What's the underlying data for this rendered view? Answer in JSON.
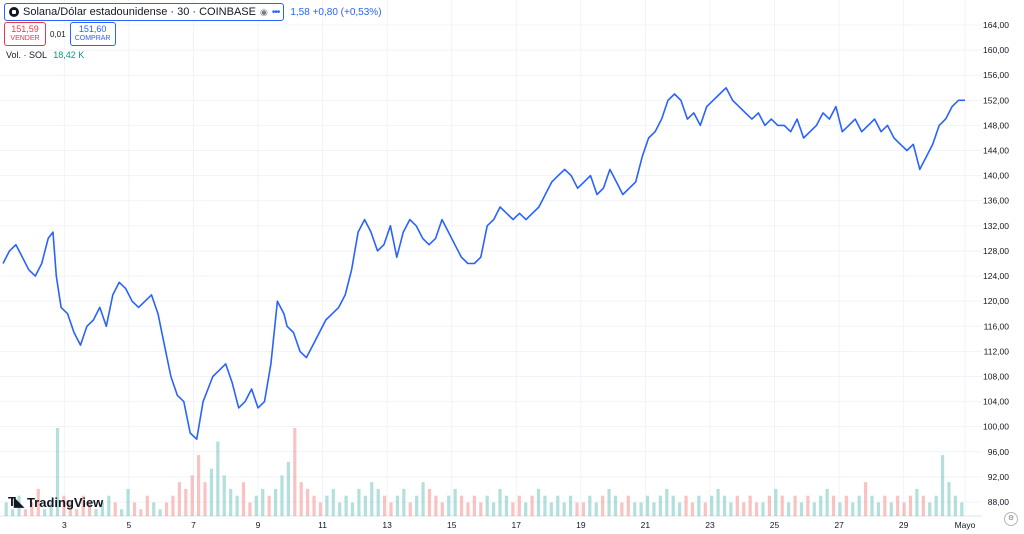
{
  "header": {
    "symbol": "Solana/Dólar estadounidense · 30 · COINBASE",
    "change_text": "1,58 +0,80 (+0,53%)",
    "icons": [
      "symbol-logo-icon",
      "eye-icon",
      "more-icon"
    ]
  },
  "trade": {
    "sell_price": "151,59",
    "sell_label": "VENDER",
    "spread": "0,01",
    "buy_price": "151,60",
    "buy_label": "COMPRAR"
  },
  "volume": {
    "label": "Vol. · SOL",
    "value": "18,42 K"
  },
  "brand": {
    "icon": "tradingview-logo-icon",
    "name": "TradingView"
  },
  "colors": {
    "line": "#2962ff",
    "up": "#26a69a",
    "down": "#ef5350",
    "grid": "#f0f3fa",
    "axis_text": "#131722"
  },
  "chart_data": {
    "type": "line",
    "title": "Solana/Dólar estadounidense · 30 · COINBASE",
    "x_range_days": [
      1.1,
      30.9
    ],
    "ylim": [
      86,
      166
    ],
    "y_ticks": [
      88,
      92,
      96,
      100,
      104,
      108,
      112,
      116,
      120,
      124,
      128,
      132,
      136,
      140,
      144,
      148,
      152,
      156,
      160,
      164
    ],
    "y_tick_labels": [
      "88,00",
      "92,00",
      "96,00",
      "100,00",
      "104,00",
      "108,00",
      "112,00",
      "116,00",
      "120,00",
      "124,00",
      "128,00",
      "132,00",
      "136,00",
      "140,00",
      "144,00",
      "148,00",
      "152,00",
      "156,00",
      "160,00",
      "164,00"
    ],
    "x_ticks": [
      3,
      5,
      7,
      9,
      11,
      13,
      15,
      17,
      19,
      21,
      23,
      25,
      27,
      29,
      30.9
    ],
    "x_tick_labels": [
      "3",
      "5",
      "7",
      "9",
      "11",
      "13",
      "15",
      "17",
      "19",
      "21",
      "23",
      "25",
      "27",
      "29",
      "Mayo"
    ],
    "series": [
      {
        "x": [
          1.1,
          1.3,
          1.5,
          1.7,
          1.9,
          2.1,
          2.3,
          2.5,
          2.65,
          2.75,
          2.9,
          3.1,
          3.3,
          3.5,
          3.7,
          3.9,
          4.1,
          4.3,
          4.5,
          4.7,
          4.9,
          5.1,
          5.3,
          5.5,
          5.7,
          5.9,
          6.1,
          6.3,
          6.5,
          6.7,
          6.9,
          7.1,
          7.3,
          7.45,
          7.6,
          7.8,
          8.0,
          8.2,
          8.4,
          8.6,
          8.8,
          9.0,
          9.2,
          9.4,
          9.6,
          9.8,
          9.9,
          10.1,
          10.3,
          10.5,
          10.7,
          10.9,
          11.1,
          11.3,
          11.5,
          11.7,
          11.9,
          12.1,
          12.3,
          12.5,
          12.7,
          12.9,
          13.1,
          13.3,
          13.5,
          13.7,
          13.9,
          14.1,
          14.3,
          14.5,
          14.7,
          14.9,
          15.1,
          15.3,
          15.5,
          15.7,
          15.9,
          16.1,
          16.3,
          16.5,
          16.7,
          16.9,
          17.1,
          17.3,
          17.5,
          17.7,
          17.9,
          18.1,
          18.3,
          18.5,
          18.7,
          18.9,
          19.1,
          19.3,
          19.5,
          19.7,
          19.9,
          20.1,
          20.3,
          20.5,
          20.7,
          20.9,
          21.1,
          21.3,
          21.5,
          21.7,
          21.9,
          22.1,
          22.3,
          22.5,
          22.7,
          22.9,
          23.1,
          23.3,
          23.5,
          23.7,
          23.9,
          24.1,
          24.3,
          24.5,
          24.7,
          24.9,
          25.1,
          25.3,
          25.5,
          25.7,
          25.9,
          26.1,
          26.3,
          26.5,
          26.7,
          26.9,
          27.1,
          27.3,
          27.5,
          27.7,
          27.9,
          28.1,
          28.3,
          28.5,
          28.7,
          28.9,
          29.1,
          29.3,
          29.5,
          29.7,
          29.9,
          30.1,
          30.3,
          30.5,
          30.7,
          30.9
        ],
        "y": [
          126,
          128,
          129,
          127,
          125,
          124,
          126,
          130,
          131,
          124,
          119,
          118,
          115,
          113,
          116,
          117,
          119,
          116,
          121,
          123,
          122,
          120,
          119,
          120,
          121,
          118,
          113,
          108,
          105,
          104,
          99,
          98,
          104,
          106,
          108,
          109,
          110,
          107,
          103,
          104,
          106,
          103,
          104,
          110,
          120,
          118,
          116,
          115,
          112,
          111,
          113,
          115,
          117,
          118,
          119,
          121,
          125,
          131,
          133,
          131,
          128,
          129,
          132,
          127,
          131,
          133,
          132,
          130,
          129,
          130,
          133,
          131,
          129,
          127,
          126,
          126,
          127,
          132,
          133,
          135,
          134,
          133,
          134,
          133,
          134,
          135,
          137,
          139,
          140,
          141,
          140,
          138,
          139,
          140,
          137,
          138,
          141,
          139,
          137,
          138,
          139,
          143,
          146,
          147,
          149,
          152,
          153,
          152,
          149,
          150,
          148,
          151,
          152,
          153,
          154,
          152,
          151,
          150,
          149,
          150,
          148,
          149,
          148,
          148,
          147,
          149,
          146,
          147,
          148,
          150,
          149,
          151,
          147,
          148,
          149,
          147,
          148,
          149,
          147,
          148,
          146,
          145,
          144,
          145,
          141,
          143,
          145,
          148,
          149,
          151,
          152,
          152
        ]
      }
    ],
    "volume": [
      2,
      1,
      3,
      1,
      2,
      4,
      1,
      2,
      13,
      3,
      2,
      1,
      3,
      2,
      1,
      2,
      3,
      2,
      1,
      4,
      2,
      1,
      3,
      2,
      1,
      2,
      3,
      5,
      4,
      6,
      9,
      5,
      7,
      11,
      6,
      4,
      3,
      5,
      2,
      3,
      4,
      3,
      4,
      6,
      8,
      13,
      5,
      4,
      3,
      2,
      3,
      4,
      2,
      3,
      2,
      4,
      3,
      5,
      4,
      3,
      2,
      3,
      4,
      2,
      3,
      5,
      4,
      3,
      2,
      3,
      4,
      3,
      2,
      3,
      2,
      3,
      2,
      4,
      3,
      2,
      3,
      2,
      3,
      4,
      3,
      2,
      3,
      2,
      3,
      2,
      2,
      3,
      2,
      3,
      4,
      3,
      2,
      3,
      2,
      2,
      3,
      2,
      3,
      4,
      3,
      2,
      3,
      2,
      3,
      2,
      3,
      4,
      3,
      2,
      3,
      2,
      3,
      2,
      2,
      3,
      4,
      3,
      2,
      3,
      2,
      3,
      2,
      3,
      4,
      3,
      2,
      3,
      2,
      3,
      5,
      3,
      2,
      3,
      2,
      3,
      2,
      3,
      4,
      3,
      2,
      3,
      9,
      5,
      3,
      2
    ]
  }
}
